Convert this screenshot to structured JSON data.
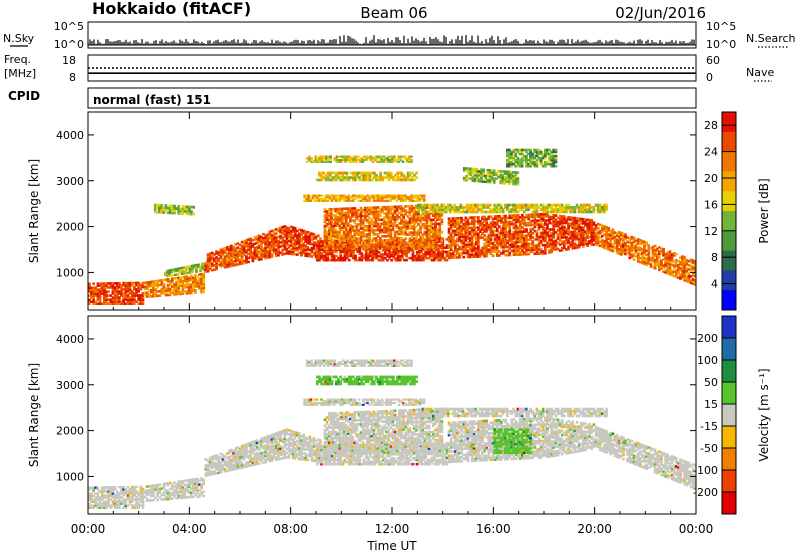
{
  "header": {
    "radar": "Hokkaido (fitACF)",
    "beam": "Beam 06",
    "date": "02/Jun/2016"
  },
  "aux_panels": {
    "nsky_label": "N.Sky",
    "nsearch_label": "N.Search",
    "freq_label_line1": "Freq.",
    "freq_label_line2": "[MHz]",
    "nave_label": "Nave",
    "cpid_label": "CPID",
    "cpid_value": "normal (fast) 151",
    "noise_ticks_left": [
      "10^5",
      "10^0"
    ],
    "noise_ticks_right": [
      "10^5",
      "10^0"
    ],
    "freq_ticks": [
      "18",
      "8"
    ],
    "nave_ticks": [
      "60",
      "0"
    ],
    "frequency_mhz": 11,
    "nave_value": 30
  },
  "chart_data": [
    {
      "type": "heatmap",
      "name": "power",
      "ylabel": "Slant Range [km]",
      "ylim": [
        180,
        4500
      ],
      "yticks": [
        1000,
        2000,
        3000,
        4000
      ],
      "xlim_hours": [
        0,
        24
      ],
      "colorbar": {
        "label": "Power [dB]",
        "ticks": [
          "4",
          "8",
          "12",
          "16",
          "20",
          "24",
          "28"
        ],
        "range": [
          0,
          30
        ],
        "colors": [
          "#0000ff",
          "#1f3fa8",
          "#2e6b4a",
          "#4f9a3c",
          "#71b538",
          "#e8d000",
          "#f5a400",
          "#f07800",
          "#ea4a00",
          "#e41000"
        ]
      },
      "bands": [
        {
          "t": [
            0.0,
            2.2
          ],
          "r": [
            [
              300,
              780
            ],
            [
              300,
              800
            ]
          ],
          "level": 27
        },
        {
          "t": [
            2.2,
            4.6
          ],
          "r": [
            [
              450,
              800
            ],
            [
              560,
              1000
            ]
          ],
          "level": 22
        },
        {
          "t": [
            3.0,
            4.8
          ],
          "r": [
            [
              900,
              1050
            ],
            [
              1050,
              1250
            ]
          ],
          "level": 14
        },
        {
          "t": [
            4.6,
            7.8
          ],
          "r": [
            [
              1000,
              1400
            ],
            [
              1400,
              2050
            ]
          ],
          "level": 26
        },
        {
          "t": [
            7.8,
            9.2
          ],
          "r": [
            [
              1400,
              2050
            ],
            [
              1300,
              1800
            ]
          ],
          "level": 27
        },
        {
          "t": [
            9.0,
            14.2
          ],
          "r": [
            [
              1250,
              1700
            ],
            [
              1250,
              1750
            ]
          ],
          "level": 29
        },
        {
          "t": [
            9.3,
            14.0
          ],
          "r": [
            [
              1500,
              2400
            ],
            [
              1500,
              2500
            ]
          ],
          "level": 24
        },
        {
          "t": [
            14.2,
            18.0
          ],
          "r": [
            [
              1300,
              2200
            ],
            [
              1400,
              2300
            ]
          ],
          "level": 26
        },
        {
          "t": [
            18.0,
            20.0
          ],
          "r": [
            [
              1400,
              2300
            ],
            [
              1600,
              2150
            ]
          ],
          "level": 28
        },
        {
          "t": [
            20.0,
            24.0
          ],
          "r": [
            [
              1600,
              2100
            ],
            [
              700,
              1250
            ]
          ],
          "level": 24
        },
        {
          "t": [
            8.5,
            13.3
          ],
          "r": [
            [
              2550,
              2700
            ],
            [
              2550,
              2700
            ]
          ],
          "level": 20
        },
        {
          "t": [
            9.0,
            13.0
          ],
          "r": [
            [
              3000,
              3200
            ],
            [
              3000,
              3200
            ]
          ],
          "level": 17
        },
        {
          "t": [
            8.6,
            12.8
          ],
          "r": [
            [
              3400,
              3550
            ],
            [
              3400,
              3550
            ]
          ],
          "level": 16
        },
        {
          "t": [
            2.6,
            4.2
          ],
          "r": [
            [
              2300,
              2500
            ],
            [
              2250,
              2450
            ]
          ],
          "level": 14
        },
        {
          "t": [
            14.8,
            17.0
          ],
          "r": [
            [
              3000,
              3300
            ],
            [
              2900,
              3200
            ]
          ],
          "level": 13
        },
        {
          "t": [
            16.5,
            18.5
          ],
          "r": [
            [
              3300,
              3700
            ],
            [
              3300,
              3700
            ]
          ],
          "level": 12
        },
        {
          "t": [
            13.0,
            20.5
          ],
          "r": [
            [
              2300,
              2500
            ],
            [
              2300,
              2500
            ]
          ],
          "level": 16
        }
      ]
    },
    {
      "type": "heatmap",
      "name": "velocity",
      "xlabel": "Time UT",
      "ylabel": "Slant Range [km]",
      "ylim": [
        180,
        4500
      ],
      "yticks": [
        1000,
        2000,
        3000,
        4000
      ],
      "xlim_hours": [
        0,
        24
      ],
      "xticks": [
        "00:00",
        "04:00",
        "08:00",
        "12:00",
        "16:00",
        "20:00",
        "00:00"
      ],
      "colorbar": {
        "label": "Velocity [m s⁻¹]",
        "ticks": [
          "200",
          "100",
          "50",
          "15",
          "-15",
          "-50",
          "-100",
          "-200"
        ],
        "colors": [
          "#1d33c8",
          "#1d6ea6",
          "#1f8f3e",
          "#59c32d",
          "#c8c8c0",
          "#f5b800",
          "#f08000",
          "#ea4000",
          "#e40000"
        ]
      },
      "bands": [
        {
          "t": [
            0.0,
            2.2
          ],
          "r": [
            [
              300,
              780
            ],
            [
              300,
              800
            ]
          ],
          "level": 4
        },
        {
          "t": [
            2.2,
            4.6
          ],
          "r": [
            [
              450,
              800
            ],
            [
              560,
              1000
            ]
          ],
          "level": 4
        },
        {
          "t": [
            4.6,
            7.8
          ],
          "r": [
            [
              1000,
              1400
            ],
            [
              1400,
              2050
            ]
          ],
          "level": 4
        },
        {
          "t": [
            7.8,
            9.2
          ],
          "r": [
            [
              1400,
              2050
            ],
            [
              1300,
              1800
            ]
          ],
          "level": 4
        },
        {
          "t": [
            9.0,
            14.2
          ],
          "r": [
            [
              1250,
              1700
            ],
            [
              1250,
              1750
            ]
          ],
          "level": 4
        },
        {
          "t": [
            9.3,
            14.0
          ],
          "r": [
            [
              1500,
              2400
            ],
            [
              1500,
              2500
            ]
          ],
          "level": 4
        },
        {
          "t": [
            14.2,
            18.0
          ],
          "r": [
            [
              1300,
              2200
            ],
            [
              1400,
              2300
            ]
          ],
          "level": 4
        },
        {
          "t": [
            16.0,
            17.5
          ],
          "r": [
            [
              1500,
              2050
            ],
            [
              1500,
              2050
            ]
          ],
          "level": 3
        },
        {
          "t": [
            18.0,
            20.0
          ],
          "r": [
            [
              1400,
              2300
            ],
            [
              1600,
              2150
            ]
          ],
          "level": 4
        },
        {
          "t": [
            20.0,
            24.0
          ],
          "r": [
            [
              1600,
              2100
            ],
            [
              700,
              1250
            ]
          ],
          "level": 4
        },
        {
          "t": [
            8.5,
            13.3
          ],
          "r": [
            [
              2550,
              2700
            ],
            [
              2550,
              2700
            ]
          ],
          "level": 4
        },
        {
          "t": [
            9.0,
            13.0
          ],
          "r": [
            [
              3000,
              3200
            ],
            [
              3000,
              3200
            ]
          ],
          "level": 3
        },
        {
          "t": [
            8.6,
            12.8
          ],
          "r": [
            [
              3400,
              3550
            ],
            [
              3400,
              3550
            ]
          ],
          "level": 4
        },
        {
          "t": [
            13.0,
            20.5
          ],
          "r": [
            [
              2300,
              2500
            ],
            [
              2300,
              2500
            ]
          ],
          "level": 4
        }
      ]
    }
  ]
}
